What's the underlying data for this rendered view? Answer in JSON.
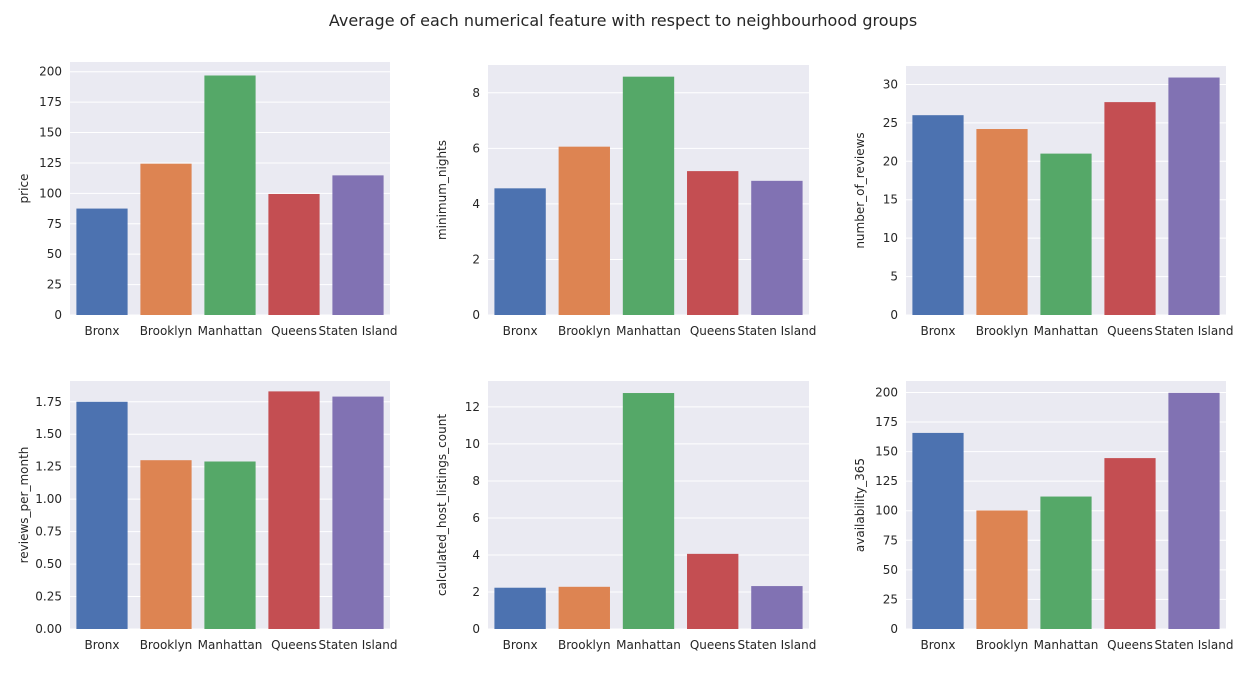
{
  "figure": {
    "title": "Average of each numerical feature with respect to neighbourhood groups"
  },
  "colors": {
    "panel_bg": "#eaeaf2",
    "grid": "#ffffff",
    "bars": [
      "#4c72b0",
      "#dd8452",
      "#55a868",
      "#c44e52",
      "#8172b3"
    ]
  },
  "chart_data": [
    {
      "type": "bar",
      "categories": [
        "Bronx",
        "Brooklyn",
        "Manhattan",
        "Queens",
        "Staten Island"
      ],
      "values": [
        87.5,
        124.4,
        196.9,
        99.5,
        114.8
      ],
      "ylabel": "price",
      "ylim": [
        0,
        208
      ],
      "yticks": [
        0,
        25,
        50,
        75,
        100,
        125,
        150,
        175,
        200
      ],
      "ytick_labels": [
        "0",
        "25",
        "50",
        "75",
        "100",
        "125",
        "150",
        "175",
        "200"
      ],
      "grid": true
    },
    {
      "type": "bar",
      "categories": [
        "Bronx",
        "Brooklyn",
        "Manhattan",
        "Queens",
        "Staten Island"
      ],
      "values": [
        4.56,
        6.06,
        8.58,
        5.18,
        4.83
      ],
      "ylabel": "minimum_nights",
      "ylim": [
        0,
        9.0
      ],
      "yticks": [
        0,
        2,
        4,
        6,
        8
      ],
      "ytick_labels": [
        "0",
        "2",
        "4",
        "6",
        "8"
      ],
      "grid": true
    },
    {
      "type": "bar",
      "categories": [
        "Bronx",
        "Brooklyn",
        "Manhattan",
        "Queens",
        "Staten Island"
      ],
      "values": [
        26.0,
        24.2,
        21.0,
        27.7,
        30.9
      ],
      "ylabel": "number_of_reviews",
      "ylim": [
        0,
        32.4
      ],
      "yticks": [
        0,
        5,
        10,
        15,
        20,
        25,
        30
      ],
      "ytick_labels": [
        "0",
        "5",
        "10",
        "15",
        "20",
        "25",
        "30"
      ],
      "grid": true
    },
    {
      "type": "bar",
      "categories": [
        "Bronx",
        "Brooklyn",
        "Manhattan",
        "Queens",
        "Staten Island"
      ],
      "values": [
        1.75,
        1.3,
        1.29,
        1.83,
        1.79
      ],
      "ylabel": "reviews_per_month",
      "ylim": [
        0,
        1.91
      ],
      "yticks": [
        0,
        0.25,
        0.5,
        0.75,
        1.0,
        1.25,
        1.5,
        1.75
      ],
      "ytick_labels": [
        "0.00",
        "0.25",
        "0.50",
        "0.75",
        "1.00",
        "1.25",
        "1.50",
        "1.75"
      ],
      "grid": true
    },
    {
      "type": "bar",
      "categories": [
        "Bronx",
        "Brooklyn",
        "Manhattan",
        "Queens",
        "Staten Island"
      ],
      "values": [
        2.23,
        2.28,
        12.75,
        4.06,
        2.32
      ],
      "ylabel": "calculated_host_listings_count",
      "ylim": [
        0,
        13.4
      ],
      "yticks": [
        0,
        2,
        4,
        6,
        8,
        10,
        12
      ],
      "ytick_labels": [
        "0",
        "2",
        "4",
        "6",
        "8",
        "10",
        "12"
      ],
      "grid": true
    },
    {
      "type": "bar",
      "categories": [
        "Bronx",
        "Brooklyn",
        "Manhattan",
        "Queens",
        "Staten Island"
      ],
      "values": [
        165.8,
        100.2,
        112.0,
        144.5,
        199.7
      ],
      "ylabel": "availability_365",
      "ylim": [
        0,
        209.7
      ],
      "yticks": [
        0,
        25,
        50,
        75,
        100,
        125,
        150,
        175,
        200
      ],
      "ytick_labels": [
        "0",
        "25",
        "50",
        "75",
        "100",
        "125",
        "150",
        "175",
        "200"
      ],
      "grid": true
    }
  ]
}
